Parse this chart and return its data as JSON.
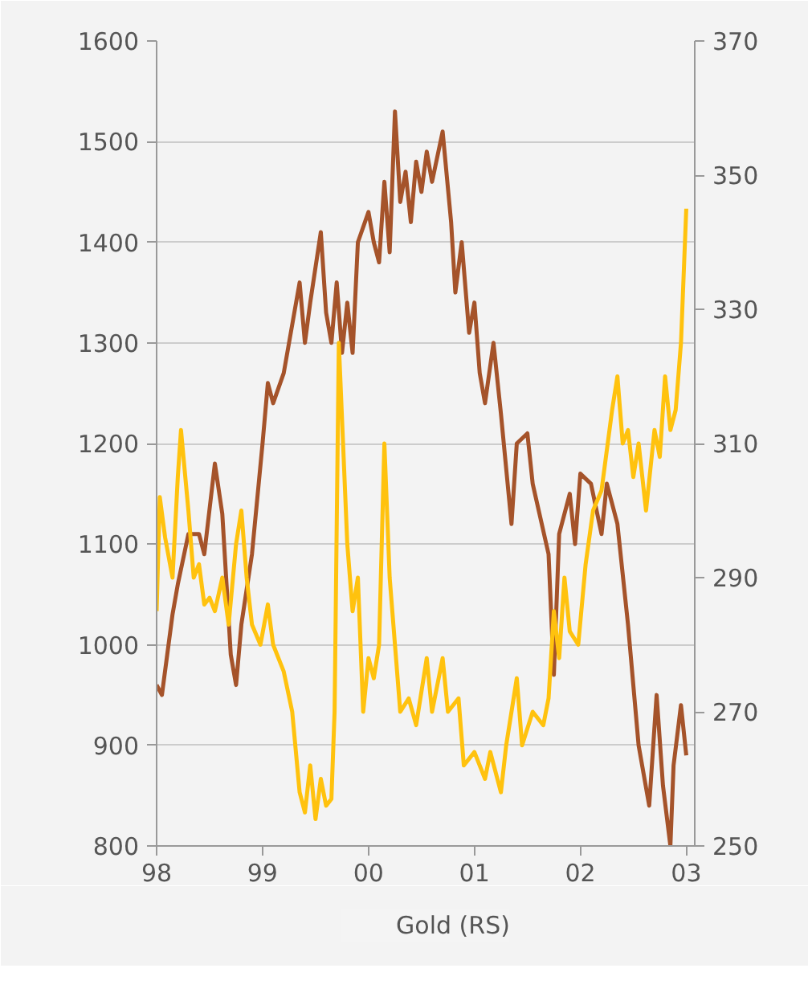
{
  "chart_data": {
    "type": "line",
    "xlim": [
      1998,
      2003.08
    ],
    "xticks": [
      {
        "value": 1998,
        "label": "98"
      },
      {
        "value": 1999,
        "label": "99"
      },
      {
        "value": 2000,
        "label": "00"
      },
      {
        "value": 2001,
        "label": "01"
      },
      {
        "value": 2002,
        "label": "02"
      },
      {
        "value": 2003,
        "label": "03"
      }
    ],
    "ylim": [
      800,
      1600
    ],
    "yticks": [
      800,
      900,
      1000,
      1100,
      1200,
      1300,
      1400,
      1500,
      1600
    ],
    "y2lim": [
      250,
      370
    ],
    "y2ticks": [
      250,
      270,
      290,
      310,
      330,
      350,
      370
    ],
    "grid": "y",
    "legend": "bottom",
    "series": [
      {
        "color": "#a5532a",
        "x": [
          1998.0,
          1998.05,
          1998.15,
          1998.2,
          1998.3,
          1998.4,
          1998.45,
          1998.55,
          1998.62,
          1998.7,
          1998.75,
          1998.8,
          1998.9,
          1999.0,
          1999.05,
          1999.1,
          1999.2,
          1999.3,
          1999.35,
          1999.4,
          1999.45,
          1999.55,
          1999.6,
          1999.65,
          1999.7,
          1999.75,
          1999.8,
          1999.85,
          1999.9,
          2000.0,
          2000.05,
          2000.1,
          2000.15,
          2000.2,
          2000.25,
          2000.3,
          2000.35,
          2000.4,
          2000.45,
          2000.5,
          2000.55,
          2000.6,
          2000.7,
          2000.78,
          2000.82,
          2000.88,
          2000.95,
          2001.0,
          2001.05,
          2001.1,
          2001.18,
          2001.25,
          2001.35,
          2001.4,
          2001.5,
          2001.55,
          2001.7,
          2001.75,
          2001.8,
          2001.9,
          2001.95,
          2002.0,
          2002.1,
          2002.2,
          2002.25,
          2002.35,
          2002.45,
          2002.55,
          2002.65,
          2002.72,
          2002.78,
          2002.85,
          2002.88,
          2002.95,
          2003.0
        ],
        "values": [
          960,
          950,
          1030,
          1060,
          1110,
          1110,
          1090,
          1180,
          1130,
          990,
          960,
          1020,
          1090,
          1200,
          1260,
          1240,
          1270,
          1330,
          1360,
          1300,
          1340,
          1410,
          1330,
          1300,
          1360,
          1290,
          1340,
          1290,
          1400,
          1430,
          1400,
          1380,
          1460,
          1390,
          1530,
          1440,
          1470,
          1420,
          1480,
          1450,
          1490,
          1460,
          1510,
          1420,
          1350,
          1400,
          1310,
          1340,
          1270,
          1240,
          1300,
          1230,
          1120,
          1200,
          1210,
          1160,
          1090,
          970,
          1110,
          1150,
          1100,
          1170,
          1160,
          1110,
          1160,
          1120,
          1020,
          900,
          840,
          950,
          860,
          800,
          880,
          940,
          890
        ]
      },
      {
        "name": "Gold (RS)",
        "color": "#ffc20e",
        "axis": "y2",
        "x": [
          1998.0,
          1998.03,
          1998.08,
          1998.15,
          1998.2,
          1998.23,
          1998.3,
          1998.35,
          1998.4,
          1998.45,
          1998.5,
          1998.55,
          1998.62,
          1998.68,
          1998.75,
          1998.8,
          1998.85,
          1998.9,
          1998.98,
          1999.05,
          1999.1,
          1999.2,
          1999.28,
          1999.35,
          1999.4,
          1999.45,
          1999.5,
          1999.55,
          1999.6,
          1999.65,
          1999.68,
          1999.72,
          1999.8,
          1999.85,
          1999.9,
          1999.95,
          2000.0,
          2000.05,
          2000.1,
          2000.15,
          2000.2,
          2000.3,
          2000.38,
          2000.45,
          2000.55,
          2000.6,
          2000.7,
          2000.75,
          2000.85,
          2000.9,
          2001.0,
          2001.1,
          2001.15,
          2001.25,
          2001.3,
          2001.4,
          2001.45,
          2001.55,
          2001.65,
          2001.7,
          2001.75,
          2001.8,
          2001.85,
          2001.9,
          2001.98,
          2002.05,
          2002.12,
          2002.2,
          2002.3,
          2002.35,
          2002.4,
          2002.45,
          2002.5,
          2002.55,
          2002.62,
          2002.7,
          2002.75,
          2002.8,
          2002.85,
          2002.9,
          2002.95,
          2003.0
        ],
        "values": [
          285,
          302,
          296,
          290,
          305,
          312,
          300,
          290,
          292,
          286,
          287,
          285,
          290,
          283,
          295,
          300,
          290,
          283,
          280,
          286,
          280,
          276,
          270,
          258,
          255,
          262,
          254,
          260,
          256,
          257,
          270,
          325,
          295,
          285,
          290,
          270,
          278,
          275,
          280,
          310,
          290,
          270,
          272,
          268,
          278,
          270,
          278,
          270,
          272,
          262,
          264,
          260,
          264,
          258,
          265,
          275,
          265,
          270,
          268,
          272,
          285,
          278,
          290,
          282,
          280,
          292,
          300,
          303,
          315,
          320,
          310,
          312,
          305,
          310,
          300,
          312,
          308,
          320,
          312,
          315,
          325,
          345
        ]
      }
    ]
  }
}
